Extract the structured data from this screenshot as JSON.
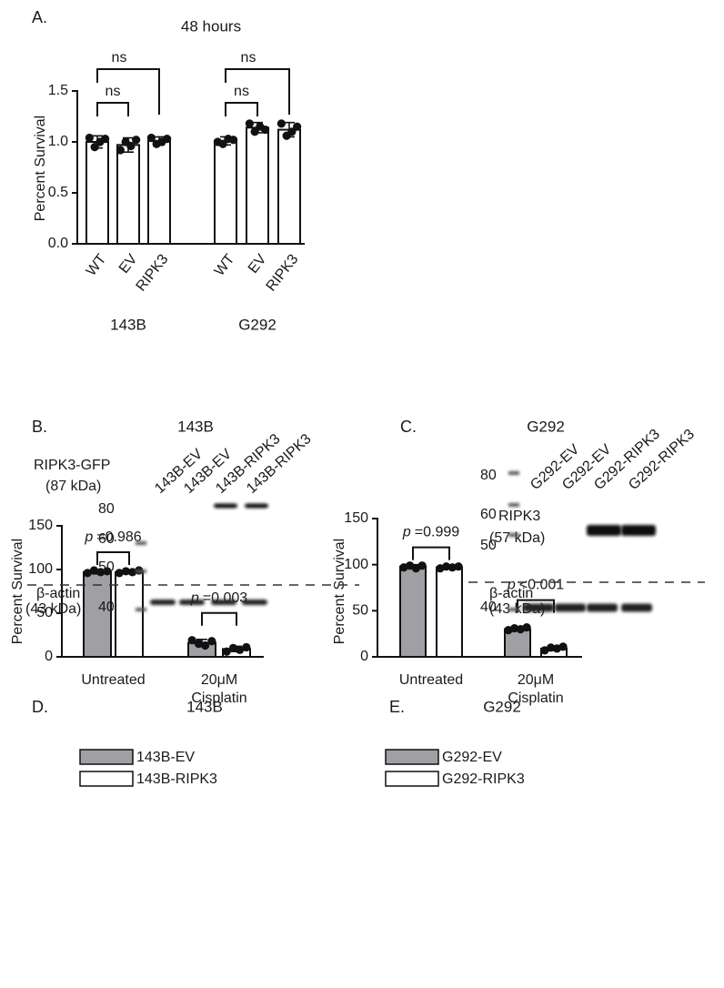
{
  "chart_data": [
    {
      "type": "bar",
      "panel": "A.",
      "title": "48 hours",
      "y_label": "Percent Survival",
      "categories": [
        "WT",
        "EV",
        "RIPK3",
        "WT",
        "EV",
        "RIPK3"
      ],
      "group_labels": [
        "143B",
        "G292"
      ],
      "values": [
        1.0,
        0.97,
        1.01,
        1.01,
        1.14,
        1.12
      ],
      "errors": [
        0.06,
        0.07,
        0.04,
        0.04,
        0.05,
        0.07
      ],
      "points": [
        [
          1.04,
          0.95,
          1.0,
          1.03
        ],
        [
          0.92,
          1.0,
          0.96,
          1.02
        ],
        [
          1.04,
          0.98,
          1.0,
          1.03
        ],
        [
          1.0,
          0.98,
          1.03,
          1.02
        ],
        [
          1.18,
          1.1,
          1.15,
          1.12
        ],
        [
          1.18,
          1.06,
          1.1,
          1.15
        ]
      ],
      "color": "#ffffff",
      "ylim": [
        0,
        1.5
      ],
      "yticks": [
        {
          "value": 0,
          "label": "0.0"
        },
        0.5,
        {
          "value": 1,
          "label": "1.0"
        },
        1.5
      ],
      "comparisons": [
        {
          "pair": [
            0,
            1
          ],
          "label": "ns"
        },
        {
          "pair": [
            0,
            2
          ],
          "label": "ns"
        },
        {
          "pair": [
            3,
            4
          ],
          "label": "ns"
        },
        {
          "pair": [
            3,
            5
          ],
          "label": "ns"
        }
      ]
    },
    {
      "type": "bar",
      "panel": "D.",
      "title": "143B",
      "y_label": "Percent Survival",
      "categories": [
        "Untreated",
        [
          "20μM",
          "Cisplatin"
        ]
      ],
      "series": [
        {
          "name": "143B-EV",
          "color": "#a0a0a4",
          "values": [
            97,
            16
          ],
          "errors": [
            2,
            4
          ],
          "points": [
            [
              96,
              99,
              97,
              98
            ],
            [
              19,
              15,
              13,
              18
            ]
          ]
        },
        {
          "name": "143B-RIPK3",
          "color": "#ffffff",
          "values": [
            97,
            9
          ],
          "errors": [
            2,
            3
          ],
          "points": [
            [
              96,
              98,
              97,
              99
            ],
            [
              6,
              10,
              8,
              11
            ]
          ]
        }
      ],
      "annotations": [
        {
          "symbol": "p",
          "text": "=0.986"
        },
        {
          "symbol": "p",
          "text": "=0.003"
        }
      ],
      "ylim": [
        0,
        150
      ],
      "yticks": [
        0,
        50,
        100,
        150
      ]
    },
    {
      "type": "bar",
      "panel": "E.",
      "title": "G292",
      "y_label": "Percent Survival",
      "categories": [
        "Untreated",
        [
          "20μM",
          "Cisplatin"
        ]
      ],
      "series": [
        {
          "name": "G292-EV",
          "color": "#a0a0a4",
          "values": [
            98,
            30
          ],
          "errors": [
            2,
            2
          ],
          "points": [
            [
              97,
              99,
              96,
              99
            ],
            [
              29,
              31,
              30,
              32
            ]
          ]
        },
        {
          "name": "G292-RIPK3",
          "color": "#ffffff",
          "values": [
            97,
            9
          ],
          "errors": [
            1,
            2
          ],
          "points": [
            [
              96,
              98,
              97,
              98
            ],
            [
              7,
              10,
              9,
              11
            ]
          ]
        }
      ],
      "annotations": [
        {
          "symbol": "p",
          "text": "=0.999"
        },
        {
          "symbol": "p",
          "text": "<0.001"
        }
      ],
      "ylim": [
        0,
        150
      ],
      "yticks": [
        0,
        50,
        100,
        150
      ]
    }
  ],
  "blots": [
    {
      "panel": "B.",
      "title": "143B",
      "lanes": [
        "143B-EV",
        "143B-EV",
        "143B-RIPK3",
        "143B-RIPK3"
      ],
      "protein_labels": [
        [
          "RIPK3-GFP",
          "(87 kDa)"
        ],
        [
          "β-actin",
          "(43 kDa)"
        ]
      ],
      "markers": [
        80,
        60,
        50,
        40
      ]
    },
    {
      "panel": "C.",
      "title": "G292",
      "lanes": [
        "G292-EV",
        "G292-EV",
        "G292-RIPK3",
        "G292-RIPK3"
      ],
      "protein_labels": [
        [
          "RIPK3",
          "(57 kDa)"
        ],
        [
          "β-actin",
          "(43 kDa)"
        ]
      ],
      "markers": [
        80,
        60,
        50,
        40
      ]
    }
  ]
}
